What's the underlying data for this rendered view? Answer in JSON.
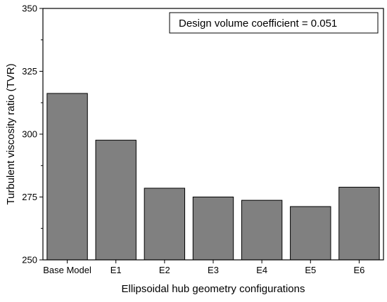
{
  "chart_data": {
    "type": "bar",
    "categories": [
      "Base Model",
      "E1",
      "E2",
      "E3",
      "E4",
      "E5",
      "E6"
    ],
    "values": [
      316.2,
      297.6,
      278.5,
      275.0,
      273.7,
      271.2,
      278.9
    ],
    "title": "",
    "xlabel": "Ellipsoidal hub geometry configurations",
    "ylabel": "Turbulent viscosity ratio (TVR)",
    "ylim": [
      250,
      350
    ],
    "yticks": [
      250,
      275,
      300,
      325,
      350
    ],
    "grid": false,
    "bar_color": "#808080",
    "annotation": "Design volume coefficient = 0.051"
  }
}
